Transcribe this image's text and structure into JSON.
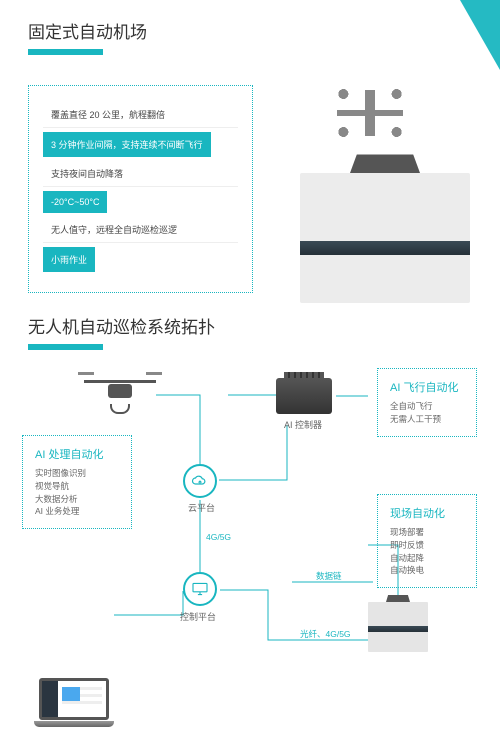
{
  "colors": {
    "accent": "#19b6c0",
    "text": "#333333",
    "muted": "#666666"
  },
  "section1": {
    "title": "固定式自动机场",
    "specs": [
      {
        "text": "覆盖直径 20 公里，航程翻倍",
        "style": "plain"
      },
      {
        "text": "3 分钟作业间隔，支持连续不间断飞行",
        "style": "pill"
      },
      {
        "text": "支持夜间自动降落",
        "style": "plain"
      },
      {
        "text": "-20°C~50°C",
        "style": "pill"
      },
      {
        "text": "无人值守，远程全自动巡检巡逻",
        "style": "plain"
      },
      {
        "text": "小雨作业",
        "style": "pill"
      }
    ]
  },
  "section2": {
    "title": "无人机自动巡检系统拓扑",
    "nodes": {
      "ai_proc": {
        "title": "AI 处理自动化",
        "lines": [
          "实时图像识别",
          "视觉导航",
          "大数据分析",
          "AI 业务处理"
        ]
      },
      "ai_flight": {
        "title": "AI 飞行自动化",
        "lines": [
          "全自动飞行",
          "无需人工干预"
        ]
      },
      "onsite": {
        "title": "现场自动化",
        "lines": [
          "现场部署",
          "即时反馈",
          "自动起降",
          "自动换电"
        ]
      },
      "drone_label": "",
      "controller_label": "AI 控制器",
      "cloud_label": "云平台",
      "control_platform_label": "控制平台",
      "station_label": ""
    },
    "edges": {
      "cloud_ctrl": "4G/5G",
      "ctrl_data": "数据链",
      "bottom": "光纤、4G/5G"
    }
  }
}
